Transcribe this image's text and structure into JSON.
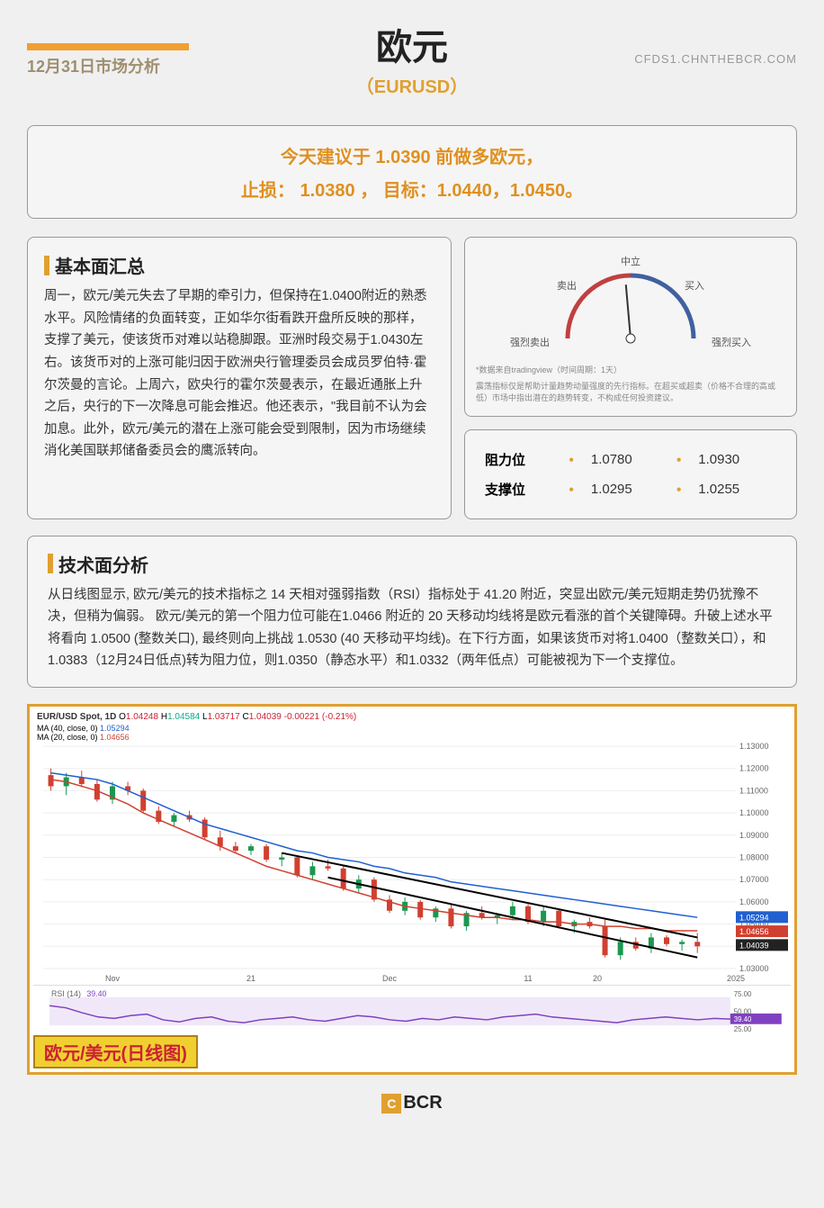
{
  "header": {
    "date": "12月31日市场分析",
    "title": "欧元",
    "symbol": "（EURUSD）",
    "site": "CFDS1.CHNTHEBCR.COM"
  },
  "recommendation": {
    "line1": "今天建议于 1.0390 前做多欧元，",
    "line2": "止损： 1.0380 ，  目标：1.0440，1.0450。"
  },
  "fundamentals": {
    "title": "基本面汇总",
    "body": "周一，欧元/美元失去了早期的牵引力，但保持在1.0400附近的熟悉水平。风险情绪的负面转变，正如华尔街看跌开盘所反映的那样，支撑了美元，使该货币对难以站稳脚跟。亚洲时段交易于1.0430左右。该货币对的上涨可能归因于欧洲央行管理委员会成员罗伯特·霍尔茨曼的言论。上周六，欧央行的霍尔茨曼表示，在最近通胀上升之后，央行的下一次降息可能会推迟。他还表示，\"我目前不认为会加息。此外，欧元/美元的潜在上涨可能会受到限制，因为市场继续消化美国联邦储备委员会的鹰派转向。"
  },
  "gauge": {
    "labels": {
      "strong_sell": "强烈卖出",
      "sell": "卖出",
      "neutral": "中立",
      "buy": "买入",
      "strong_buy": "强烈买入"
    },
    "needle_angle": -5,
    "colors": {
      "sell_side": "#c04040",
      "buy_side": "#4060a0",
      "needle": "#333"
    },
    "caption1": "*数据来自tradingview（时间周期：1天）",
    "caption2": "震荡指标仅是帮助计量趋势动量强度的先行指标。在超买或超卖（价格不合理的高或低）市场中指出潜在的趋势转变，不构成任何投资建议。"
  },
  "levels": {
    "resistance_label": "阻力位",
    "support_label": "支撑位",
    "resistance": [
      "1.0780",
      "1.0930"
    ],
    "support": [
      "1.0295",
      "1.0255"
    ]
  },
  "technical": {
    "title": "技术面分析",
    "body": "从日线图显示, 欧元/美元的技术指标之 14 天相对强弱指数（RSI）指标处于 41.20 附近，突显出欧元/美元短期走势仍犹豫不决，但稍为偏弱。 欧元/美元的第一个阻力位可能在1.0466 附近的 20 天移动均线将是欧元看涨的首个关键障碍。升破上述水平将看向 1.0500 (整数关口), 最终则向上挑战 1.0530 (40 天移动平均线)。在下行方面，如果该货币对将1.0400（整数关口），和 1.0383（12月24日低点)转为阻力位，则1.0350（静态水平）和1.0332（两年低点）可能被视为下一个支撑位。"
  },
  "chart": {
    "ticker": "EUR/USD Spot, 1D",
    "ohlc": {
      "o": "1.04248",
      "h": "1.04584",
      "l": "1.03717",
      "c": "1.04039",
      "chg": "-0.00221 (-0.21%)"
    },
    "ma": [
      {
        "label": "MA (40, close, 0)",
        "value": "1.05294",
        "color": "#2060d0"
      },
      {
        "label": "MA (20, close, 0)",
        "value": "1.04656",
        "color": "#d04030"
      }
    ],
    "y_axis": {
      "min": 1.03,
      "max": 1.13,
      "step": 0.01
    },
    "price_tags": [
      {
        "value": "1.05294",
        "color": "#2060d0"
      },
      {
        "value": "1.04656",
        "color": "#d04030"
      },
      {
        "value": "1.04039",
        "color": "#222"
      }
    ],
    "x_ticks": [
      "",
      "Nov",
      "",
      "21",
      "",
      "Dec",
      "",
      "11",
      "20",
      "",
      "2025"
    ],
    "candles": [
      {
        "x": 0,
        "o": 1.117,
        "h": 1.12,
        "l": 1.11,
        "c": 1.112,
        "g": false
      },
      {
        "x": 1,
        "o": 1.112,
        "h": 1.118,
        "l": 1.108,
        "c": 1.116,
        "g": true
      },
      {
        "x": 2,
        "o": 1.116,
        "h": 1.119,
        "l": 1.112,
        "c": 1.113,
        "g": false
      },
      {
        "x": 3,
        "o": 1.113,
        "h": 1.115,
        "l": 1.105,
        "c": 1.106,
        "g": false
      },
      {
        "x": 4,
        "o": 1.106,
        "h": 1.114,
        "l": 1.104,
        "c": 1.112,
        "g": true
      },
      {
        "x": 5,
        "o": 1.112,
        "h": 1.114,
        "l": 1.108,
        "c": 1.11,
        "g": false
      },
      {
        "x": 6,
        "o": 1.11,
        "h": 1.111,
        "l": 1.1,
        "c": 1.101,
        "g": false
      },
      {
        "x": 7,
        "o": 1.101,
        "h": 1.103,
        "l": 1.095,
        "c": 1.096,
        "g": false
      },
      {
        "x": 8,
        "o": 1.096,
        "h": 1.1,
        "l": 1.094,
        "c": 1.099,
        "g": true
      },
      {
        "x": 9,
        "o": 1.099,
        "h": 1.101,
        "l": 1.096,
        "c": 1.097,
        "g": false
      },
      {
        "x": 10,
        "o": 1.097,
        "h": 1.098,
        "l": 1.088,
        "c": 1.089,
        "g": false
      },
      {
        "x": 11,
        "o": 1.089,
        "h": 1.092,
        "l": 1.083,
        "c": 1.085,
        "g": false
      },
      {
        "x": 12,
        "o": 1.085,
        "h": 1.087,
        "l": 1.082,
        "c": 1.083,
        "g": false
      },
      {
        "x": 13,
        "o": 1.083,
        "h": 1.086,
        "l": 1.081,
        "c": 1.085,
        "g": true
      },
      {
        "x": 14,
        "o": 1.085,
        "h": 1.086,
        "l": 1.078,
        "c": 1.079,
        "g": false
      },
      {
        "x": 15,
        "o": 1.079,
        "h": 1.082,
        "l": 1.076,
        "c": 1.08,
        "g": true
      },
      {
        "x": 16,
        "o": 1.08,
        "h": 1.081,
        "l": 1.071,
        "c": 1.072,
        "g": false
      },
      {
        "x": 17,
        "o": 1.072,
        "h": 1.078,
        "l": 1.07,
        "c": 1.076,
        "g": true
      },
      {
        "x": 18,
        "o": 1.076,
        "h": 1.079,
        "l": 1.074,
        "c": 1.075,
        "g": false
      },
      {
        "x": 19,
        "o": 1.075,
        "h": 1.076,
        "l": 1.065,
        "c": 1.066,
        "g": false
      },
      {
        "x": 20,
        "o": 1.066,
        "h": 1.072,
        "l": 1.064,
        "c": 1.07,
        "g": true
      },
      {
        "x": 21,
        "o": 1.07,
        "h": 1.071,
        "l": 1.06,
        "c": 1.061,
        "g": false
      },
      {
        "x": 22,
        "o": 1.061,
        "h": 1.063,
        "l": 1.055,
        "c": 1.056,
        "g": false
      },
      {
        "x": 23,
        "o": 1.056,
        "h": 1.062,
        "l": 1.054,
        "c": 1.06,
        "g": true
      },
      {
        "x": 24,
        "o": 1.06,
        "h": 1.061,
        "l": 1.052,
        "c": 1.053,
        "g": false
      },
      {
        "x": 25,
        "o": 1.053,
        "h": 1.058,
        "l": 1.051,
        "c": 1.057,
        "g": true
      },
      {
        "x": 26,
        "o": 1.057,
        "h": 1.059,
        "l": 1.048,
        "c": 1.049,
        "g": false
      },
      {
        "x": 27,
        "o": 1.049,
        "h": 1.056,
        "l": 1.047,
        "c": 1.055,
        "g": true
      },
      {
        "x": 28,
        "o": 1.055,
        "h": 1.058,
        "l": 1.052,
        "c": 1.053,
        "g": false
      },
      {
        "x": 29,
        "o": 1.053,
        "h": 1.055,
        "l": 1.05,
        "c": 1.054,
        "g": true
      },
      {
        "x": 30,
        "o": 1.054,
        "h": 1.06,
        "l": 1.052,
        "c": 1.058,
        "g": true
      },
      {
        "x": 31,
        "o": 1.058,
        "h": 1.059,
        "l": 1.05,
        "c": 1.051,
        "g": false
      },
      {
        "x": 32,
        "o": 1.051,
        "h": 1.058,
        "l": 1.049,
        "c": 1.056,
        "g": true
      },
      {
        "x": 33,
        "o": 1.056,
        "h": 1.057,
        "l": 1.048,
        "c": 1.049,
        "g": false
      },
      {
        "x": 34,
        "o": 1.049,
        "h": 1.052,
        "l": 1.046,
        "c": 1.051,
        "g": true
      },
      {
        "x": 35,
        "o": 1.051,
        "h": 1.053,
        "l": 1.048,
        "c": 1.049,
        "g": false
      },
      {
        "x": 36,
        "o": 1.049,
        "h": 1.052,
        "l": 1.035,
        "c": 1.036,
        "g": false
      },
      {
        "x": 37,
        "o": 1.036,
        "h": 1.044,
        "l": 1.034,
        "c": 1.042,
        "g": true
      },
      {
        "x": 38,
        "o": 1.042,
        "h": 1.044,
        "l": 1.038,
        "c": 1.039,
        "g": false
      },
      {
        "x": 39,
        "o": 1.039,
        "h": 1.046,
        "l": 1.037,
        "c": 1.044,
        "g": true
      },
      {
        "x": 40,
        "o": 1.044,
        "h": 1.045,
        "l": 1.04,
        "c": 1.041,
        "g": false
      },
      {
        "x": 41,
        "o": 1.041,
        "h": 1.043,
        "l": 1.038,
        "c": 1.042,
        "g": true
      },
      {
        "x": 42,
        "o": 1.042,
        "h": 1.046,
        "l": 1.037,
        "c": 1.04,
        "g": false
      }
    ],
    "ma40_line": [
      1.118,
      1.117,
      1.116,
      1.115,
      1.113,
      1.11,
      1.107,
      1.104,
      1.101,
      1.098,
      1.095,
      1.093,
      1.091,
      1.089,
      1.087,
      1.085,
      1.083,
      1.082,
      1.08,
      1.079,
      1.078,
      1.076,
      1.075,
      1.073,
      1.072,
      1.071,
      1.069,
      1.068,
      1.067,
      1.066,
      1.065,
      1.064,
      1.063,
      1.062,
      1.061,
      1.06,
      1.059,
      1.058,
      1.057,
      1.056,
      1.055,
      1.054,
      1.053
    ],
    "ma20_line": [
      1.115,
      1.114,
      1.112,
      1.11,
      1.107,
      1.104,
      1.1,
      1.097,
      1.094,
      1.091,
      1.088,
      1.085,
      1.082,
      1.079,
      1.076,
      1.074,
      1.072,
      1.07,
      1.068,
      1.066,
      1.064,
      1.062,
      1.06,
      1.058,
      1.057,
      1.056,
      1.055,
      1.054,
      1.053,
      1.053,
      1.052,
      1.052,
      1.051,
      1.051,
      1.05,
      1.05,
      1.049,
      1.049,
      1.048,
      1.048,
      1.047,
      1.047,
      1.047
    ],
    "triangle": {
      "upper": [
        [
          15,
          1.082
        ],
        [
          42,
          1.044
        ]
      ],
      "lower": [
        [
          18,
          1.071
        ],
        [
          42,
          1.035
        ]
      ]
    },
    "rsi": {
      "label": "RSI (14)",
      "value": "39.40",
      "y_ticks": [
        "75.00",
        "50.00",
        "39.40",
        "25.00"
      ],
      "color": "#8040c0",
      "line": [
        58,
        55,
        48,
        42,
        40,
        44,
        46,
        38,
        35,
        40,
        42,
        36,
        34,
        38,
        40,
        42,
        38,
        36,
        40,
        44,
        42,
        38,
        36,
        40,
        38,
        42,
        40,
        38,
        42,
        44,
        46,
        42,
        40,
        38,
        36,
        34,
        38,
        40,
        42,
        40,
        38,
        40,
        39
      ]
    },
    "label": "欧元/美元(日线图)"
  },
  "footer": {
    "brand": "BCR"
  }
}
